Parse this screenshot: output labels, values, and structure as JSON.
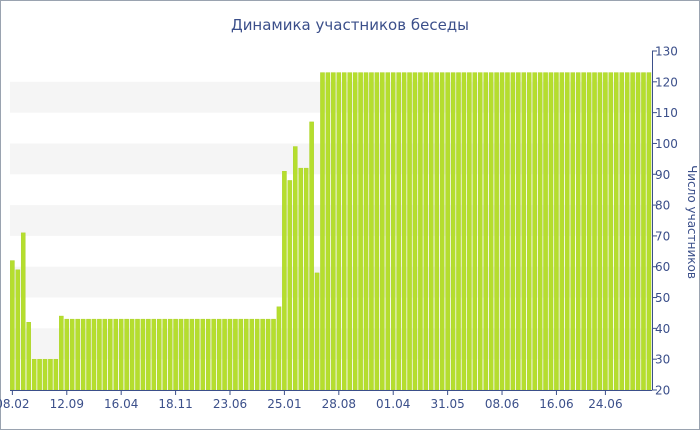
{
  "chart_data": {
    "type": "bar",
    "title": "Динамика участников беседы",
    "ylabel": "Число участников",
    "xlabel": "",
    "ylim": [
      20,
      130
    ],
    "y_ticks": [
      20,
      30,
      40,
      50,
      60,
      70,
      80,
      90,
      100,
      110,
      120,
      130
    ],
    "x_tick_labels": [
      "08.02",
      "12.09",
      "16.04",
      "18.11",
      "23.06",
      "25.01",
      "28.08",
      "01.04",
      "31.05",
      "08.06",
      "16.06",
      "24.06"
    ],
    "x_tick_indices": [
      0,
      10,
      20,
      30,
      40,
      50,
      60,
      70,
      80,
      90,
      100,
      109
    ],
    "values": [
      62,
      59,
      71,
      42,
      30,
      30,
      30,
      30,
      30,
      44,
      43,
      43,
      43,
      43,
      43,
      43,
      43,
      43,
      43,
      43,
      43,
      43,
      43,
      43,
      43,
      43,
      43,
      43,
      43,
      43,
      43,
      43,
      43,
      43,
      43,
      43,
      43,
      43,
      43,
      43,
      43,
      43,
      43,
      43,
      43,
      43,
      43,
      43,
      43,
      47,
      91,
      88,
      99,
      92,
      92,
      107,
      58,
      123,
      123,
      123,
      123,
      123,
      123,
      123,
      123,
      123,
      123,
      123,
      123,
      123,
      123,
      123,
      123,
      123,
      123,
      123,
      123,
      123,
      123,
      123,
      123,
      123,
      123,
      123,
      123,
      123,
      123,
      123,
      123,
      123,
      123,
      123,
      123,
      123,
      123,
      123,
      123,
      123,
      123,
      123,
      123,
      123,
      123,
      123,
      123,
      123,
      123,
      123,
      123,
      123,
      123,
      123,
      123,
      123,
      123,
      123,
      123,
      123
    ],
    "bar_color": "#b5de2e",
    "bar_edge_color": "#a8cf22",
    "band_color": "#f5f5f5",
    "axis_color": "#3b4f8a",
    "grid": true,
    "y_axis_side": "right"
  }
}
